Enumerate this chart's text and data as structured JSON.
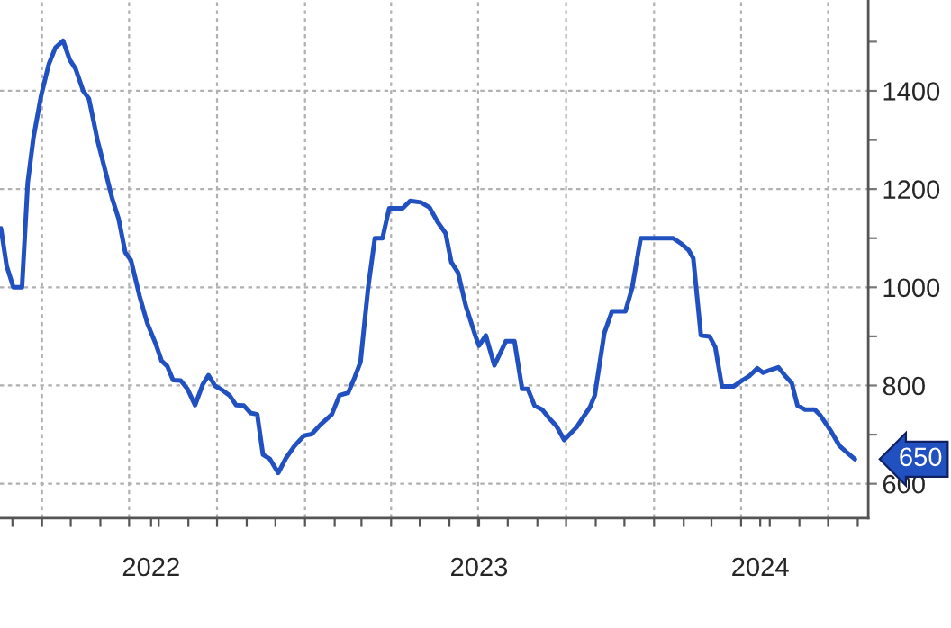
{
  "chart_data": {
    "type": "line",
    "x": [
      "2022-02-17",
      "2022-02-23",
      "2022-03-02",
      "2022-03-11",
      "2022-03-17",
      "2022-03-23",
      "2022-03-31",
      "2022-04-08",
      "2022-04-15",
      "2022-04-23",
      "2022-04-30",
      "2022-05-06",
      "2022-05-14",
      "2022-05-20",
      "2022-05-29",
      "2022-06-06",
      "2022-06-13",
      "2022-06-20",
      "2022-06-27",
      "2022-07-03",
      "2022-07-12",
      "2022-07-20",
      "2022-07-29",
      "2022-08-04",
      "2022-08-10",
      "2022-08-16",
      "2022-08-24",
      "2022-08-31",
      "2022-09-08",
      "2022-09-16",
      "2022-09-22",
      "2022-09-29",
      "2022-10-07",
      "2022-10-14",
      "2022-10-21",
      "2022-10-29",
      "2022-11-05",
      "2022-11-12",
      "2022-11-18",
      "2022-11-25",
      "2022-12-04",
      "2022-12-12",
      "2022-12-21",
      "2022-12-31",
      "2023-01-08",
      "2023-01-17",
      "2023-01-29",
      "2023-02-06",
      "2023-02-15",
      "2023-02-22",
      "2023-02-28",
      "2023-03-08",
      "2023-03-15",
      "2023-03-23",
      "2023-03-30",
      "2023-04-13",
      "2023-04-21",
      "2023-05-02",
      "2023-05-11",
      "2023-05-20",
      "2023-05-28",
      "2023-06-03",
      "2023-06-10",
      "2023-06-18",
      "2023-06-28",
      "2023-07-02",
      "2023-07-09",
      "2023-07-18",
      "2023-07-30",
      "2023-08-08",
      "2023-08-16",
      "2023-08-22",
      "2023-08-29",
      "2023-09-06",
      "2023-09-14",
      "2023-09-21",
      "2023-09-29",
      "2023-10-12",
      "2023-10-26",
      "2023-10-31",
      "2023-11-10",
      "2023-11-18",
      "2023-12-02",
      "2023-12-09",
      "2023-12-18",
      "2024-01-21",
      "2024-01-30",
      "2024-02-06",
      "2024-02-11",
      "2024-02-19",
      "2024-02-28",
      "2024-03-05",
      "2024-03-12",
      "2024-03-24",
      "2024-04-02",
      "2024-04-10",
      "2024-04-18",
      "2024-04-24",
      "2024-05-02",
      "2024-05-10",
      "2024-05-17",
      "2024-05-24",
      "2024-05-30",
      "2024-06-07",
      "2024-06-17",
      "2024-06-23",
      "2024-07-03",
      "2024-07-13",
      "2024-07-21",
      "2024-07-29"
    ],
    "series": [
      {
        "color": "#2150c0",
        "values": [
          1120,
          1043,
          1000,
          1000,
          1213,
          1305,
          1390,
          1454,
          1488,
          1502,
          1463,
          1445,
          1400,
          1384,
          1299,
          1238,
          1183,
          1140,
          1071,
          1055,
          982,
          927,
          884,
          850,
          839,
          811,
          810,
          793,
          760,
          802,
          821,
          799,
          790,
          780,
          760,
          759,
          744,
          741,
          659,
          651,
          622,
          652,
          677,
          698,
          701,
          720,
          741,
          780,
          785,
          817,
          848,
          1000,
          1100,
          1100,
          1161,
          1161,
          1176,
          1173,
          1163,
          1132,
          1110,
          1051,
          1030,
          963,
          902,
          881,
          902,
          841,
          890,
          890,
          793,
          793,
          759,
          751,
          732,
          717,
          689,
          715,
          756,
          780,
          907,
          951,
          951,
          998,
          1100,
          1100,
          1088,
          1076,
          1059,
          902,
          900,
          878,
          798,
          798,
          810,
          820,
          835,
          826,
          832,
          837,
          820,
          805,
          759,
          751,
          751,
          739,
          710,
          677,
          663,
          650
        ]
      }
    ],
    "xlim": [
      "2022-02-16",
      "2024-08-12"
    ],
    "xticks": [
      {
        "value": "2022-03-01",
        "label": null
      },
      {
        "value": "2022-04-01",
        "label": null
      },
      {
        "value": "2022-05-01",
        "label": null
      },
      {
        "value": "2022-06-01",
        "label": null
      },
      {
        "value": "2022-07-01",
        "label": null
      },
      {
        "value": "2022-08-01",
        "label": null
      },
      {
        "value": "2022-09-01",
        "label": null
      },
      {
        "value": "2022-10-01",
        "label": null
      },
      {
        "value": "2022-11-01",
        "label": null
      },
      {
        "value": "2022-12-01",
        "label": null
      },
      {
        "value": "2023-01-01",
        "label": null
      },
      {
        "value": "2023-02-01",
        "label": null
      },
      {
        "value": "2023-03-01",
        "label": null
      },
      {
        "value": "2023-04-01",
        "label": null
      },
      {
        "value": "2023-05-01",
        "label": null
      },
      {
        "value": "2023-06-01",
        "label": null
      },
      {
        "value": "2023-07-01",
        "label": null
      },
      {
        "value": "2023-08-01",
        "label": null
      },
      {
        "value": "2023-09-01",
        "label": null
      },
      {
        "value": "2023-10-01",
        "label": null
      },
      {
        "value": "2023-11-01",
        "label": null
      },
      {
        "value": "2023-12-01",
        "label": null
      },
      {
        "value": "2024-01-01",
        "label": null
      },
      {
        "value": "2024-02-01",
        "label": null
      },
      {
        "value": "2024-03-01",
        "label": null
      },
      {
        "value": "2024-04-01",
        "label": null
      },
      {
        "value": "2024-05-01",
        "label": null
      },
      {
        "value": "2024-06-01",
        "label": null
      },
      {
        "value": "2024-07-01",
        "label": null
      },
      {
        "value": "2024-08-01",
        "label": null
      },
      {
        "value": "2022-07-24",
        "label": "2022"
      },
      {
        "value": "2023-07-02",
        "label": "2023"
      },
      {
        "value": "2024-04-21",
        "label": "2024"
      }
    ],
    "ylim": [
      530,
      1585
    ],
    "yticks": [
      600,
      {
        "value": 700,
        "label": null
      },
      800,
      {
        "value": 900,
        "label": null
      },
      1000,
      {
        "value": 1100,
        "label": null
      },
      1200,
      {
        "value": 1300,
        "label": null
      },
      1400,
      {
        "value": 1500,
        "label": null
      }
    ],
    "grid": true,
    "line_style": "solid",
    "marker": "none",
    "annotations": [
      {
        "text": "650",
        "x": "2024-07-29",
        "y": 650
      }
    ]
  }
}
